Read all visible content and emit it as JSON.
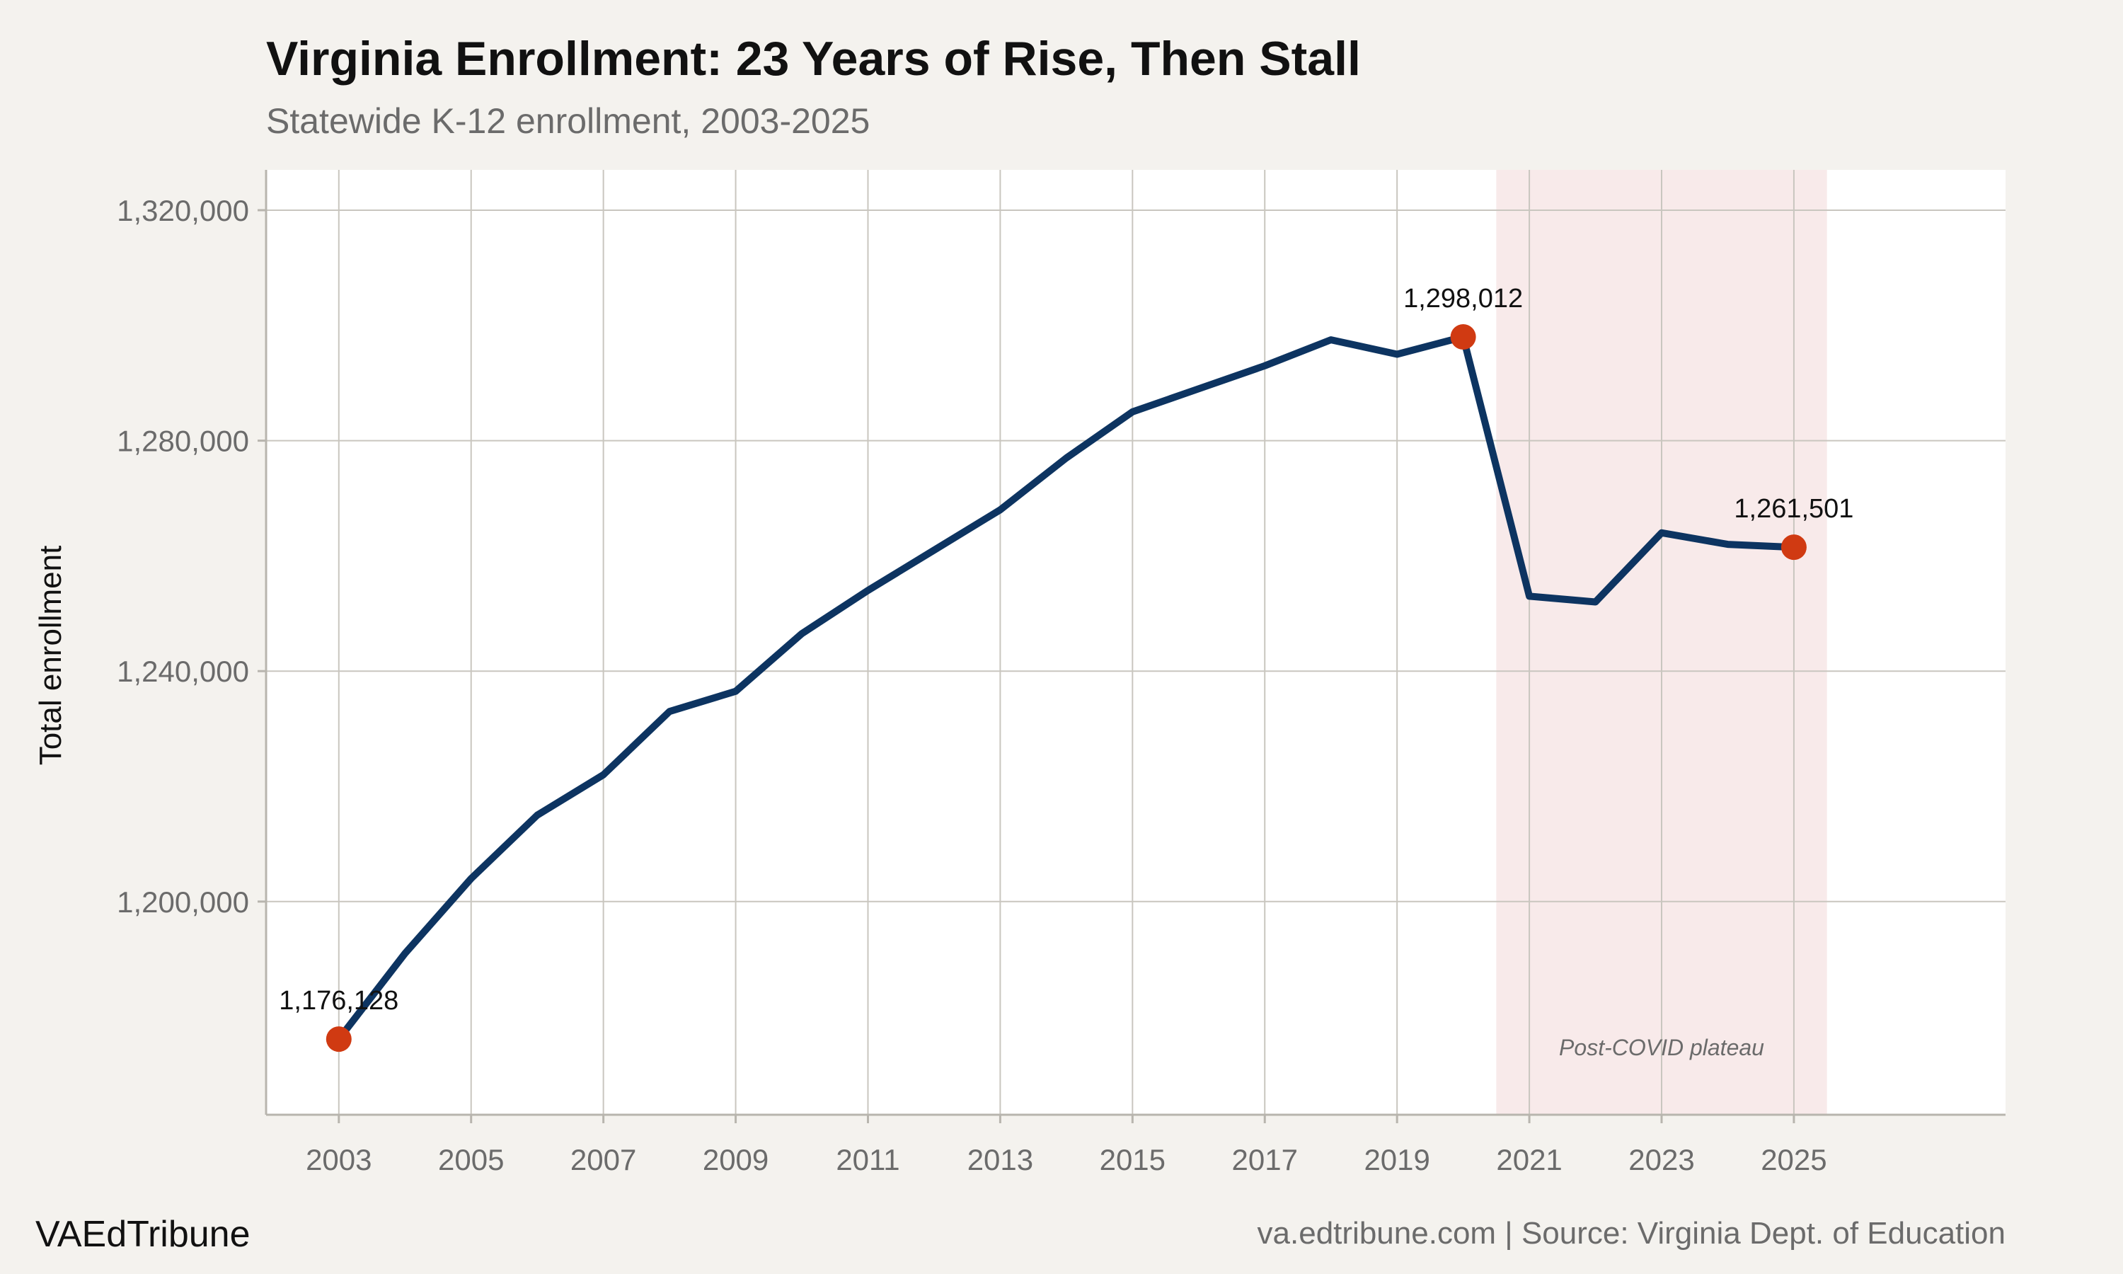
{
  "header": {
    "title": "Virginia Enrollment: 23 Years of Rise, Then Stall",
    "subtitle": "Statewide K-12 enrollment, 2003-2025"
  },
  "footer": {
    "brand": "VAEdTribune",
    "source": "va.edtribune.com | Source: Virginia Dept. of Education"
  },
  "colors": {
    "line": "#0d3461",
    "highlight": "#d03a12",
    "band": "#f8eaea",
    "plot_bg": "#ffffff",
    "page_bg": "#f4f2ee",
    "grid": "#c9c6bf"
  },
  "chart_data": {
    "type": "line",
    "title": "Virginia Enrollment: 23 Years of Rise, Then Stall",
    "subtitle": "Statewide K-12 enrollment, 2003-2025",
    "xlabel": "",
    "ylabel": "Total enrollment",
    "xlim": [
      2001.9,
      2028.2
    ],
    "ylim": [
      1163000,
      1327000
    ],
    "x_ticks": [
      2003,
      2005,
      2007,
      2009,
      2011,
      2013,
      2015,
      2017,
      2019,
      2021,
      2023,
      2025
    ],
    "y_ticks": [
      1200000,
      1240000,
      1280000,
      1320000
    ],
    "y_tick_labels": [
      "1,200,000",
      "1,240,000",
      "1,280,000",
      "1,320,000"
    ],
    "grid": true,
    "series": [
      {
        "x": [
          2003,
          2004,
          2005,
          2006,
          2007,
          2008,
          2009,
          2010,
          2011,
          2012,
          2013,
          2014,
          2015,
          2016,
          2017,
          2018,
          2019,
          2020,
          2021,
          2022,
          2023,
          2024,
          2025
        ],
        "values": [
          1176128,
          1191000,
          1204000,
          1215000,
          1222000,
          1233000,
          1236500,
          1246500,
          1254000,
          1261000,
          1268000,
          1277000,
          1285000,
          1289000,
          1293000,
          1297500,
          1295000,
          1298012,
          1253000,
          1252000,
          1264000,
          1262000,
          1261501
        ]
      }
    ],
    "highlighted_points": [
      {
        "x": 2003,
        "y": 1176128,
        "label": "1,176,128"
      },
      {
        "x": 2020,
        "y": 1298012,
        "label": "1,298,012"
      },
      {
        "x": 2025,
        "y": 1261501,
        "label": "1,261,501"
      }
    ],
    "shaded_region": {
      "x_start": 2020.5,
      "x_end": 2025.5,
      "label": "Post-COVID plateau"
    }
  }
}
